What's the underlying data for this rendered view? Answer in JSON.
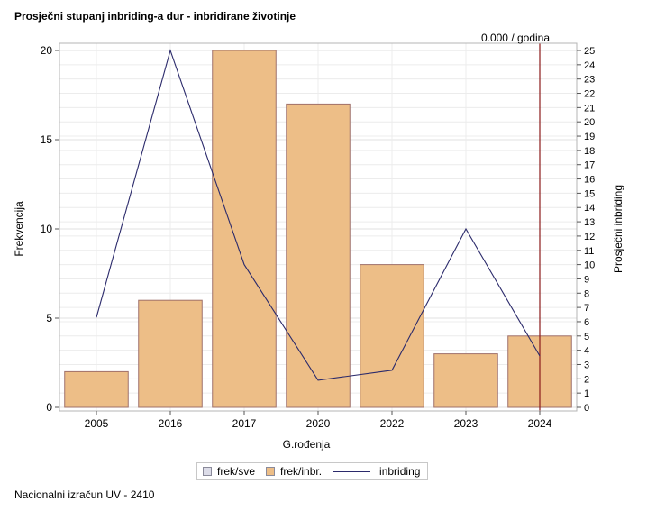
{
  "title": "Prosječni stupanj inbriding-a dur - inbridirane životinje",
  "footer": "Nacionalni izračun UV - 2410",
  "chart_data": {
    "type": "bar",
    "categories": [
      "2005",
      "2016",
      "2017",
      "2020",
      "2022",
      "2023",
      "2024"
    ],
    "series": [
      {
        "name": "frek/inbr.",
        "type": "bar",
        "axis": "left",
        "values": [
          2,
          6,
          20,
          17,
          8,
          3,
          4
        ],
        "color": "#edbe87"
      },
      {
        "name": "inbriding",
        "type": "line",
        "axis": "right",
        "values": [
          6.3,
          25,
          10,
          1.9,
          2.6,
          12.5,
          3.6
        ],
        "color": "#2b2a6b"
      }
    ],
    "xlabel": "G.rođenja",
    "ylabel": "Frekvencija",
    "y2label": "Prosječni inbriding",
    "ylim": [
      0,
      20
    ],
    "yticks": [
      "0",
      "5",
      "10",
      "15",
      "20"
    ],
    "y2lim": [
      0,
      25
    ],
    "y2ticks": [
      "0",
      "1",
      "2",
      "3",
      "4",
      "5",
      "6",
      "7",
      "8",
      "9",
      "10",
      "11",
      "12",
      "13",
      "14",
      "15",
      "16",
      "17",
      "18",
      "19",
      "20",
      "21",
      "22",
      "23",
      "24",
      "25"
    ],
    "reference_line": {
      "category": "2024",
      "label": "0.000 / godina",
      "color": "#8b1a1a"
    },
    "legend": {
      "position": "bottom",
      "items": [
        {
          "label": "frek/sve",
          "kind": "box",
          "color": "#dcdce8"
        },
        {
          "label": "frek/inbr.",
          "kind": "box",
          "color": "#edbe87"
        },
        {
          "label": "inbriding",
          "kind": "line",
          "color": "#2b2a6b"
        }
      ]
    },
    "grid": true
  }
}
